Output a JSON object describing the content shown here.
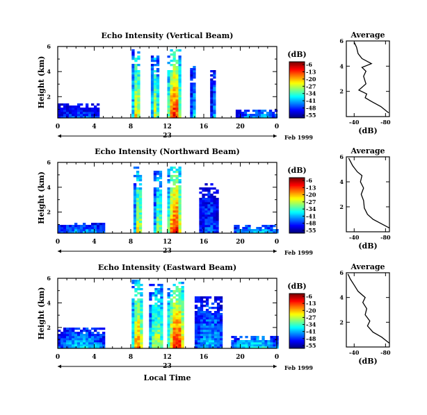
{
  "figure": {
    "date_label": "Feb 1999",
    "day_label": "23",
    "xlabel_bottom": "Local Time"
  },
  "chart_data": [
    {
      "type": "heatmap",
      "title": "Echo Intensity (Vertical Beam)",
      "xlabel": "",
      "ylabel": "Height (km)",
      "x_ticks": [
        "0",
        "4",
        "8",
        "12",
        "16",
        "20",
        "0"
      ],
      "y_ticks": [
        "2",
        "4",
        "6"
      ],
      "xlim": [
        0,
        24
      ],
      "ylim": [
        0.3,
        6
      ],
      "colorbar": {
        "label": "(dB)",
        "ticks": [
          "-6",
          "-13",
          "-20",
          "-27",
          "-34",
          "-41",
          "-48",
          "-55"
        ],
        "range": [
          -55,
          -6
        ]
      },
      "echo_columns": [
        {
          "start_hour": 0.0,
          "end_hour": 4.5,
          "top_km": 1.5,
          "intensity_db": -45
        },
        {
          "start_hour": 8.1,
          "end_hour": 8.9,
          "top_km": 5.9,
          "intensity_db": -22
        },
        {
          "start_hour": 10.2,
          "end_hour": 10.9,
          "top_km": 5.3,
          "intensity_db": -25
        },
        {
          "start_hour": 12.0,
          "end_hour": 13.3,
          "top_km": 5.8,
          "intensity_db": -12
        },
        {
          "start_hour": 14.5,
          "end_hour": 15.0,
          "top_km": 4.5,
          "intensity_db": -38
        },
        {
          "start_hour": 16.7,
          "end_hour": 17.2,
          "top_km": 4.2,
          "intensity_db": -40
        },
        {
          "start_hour": 19.5,
          "end_hour": 24.0,
          "top_km": 1.0,
          "intensity_db": -38
        }
      ],
      "profile": {
        "title": "Average",
        "xlabel": "(dB)",
        "x_ticks": [
          "-40",
          "-80"
        ],
        "y_ticks": [
          "2",
          "4",
          "6"
        ],
        "xlim": [
          -30,
          -85
        ],
        "ylim": [
          0,
          6
        ],
        "points": [
          [
            -84,
            0.3
          ],
          [
            -74,
            0.8
          ],
          [
            -62,
            1.2
          ],
          [
            -54,
            1.5
          ],
          [
            -56,
            1.8
          ],
          [
            -46,
            2.1
          ],
          [
            -55,
            2.6
          ],
          [
            -52,
            3.2
          ],
          [
            -55,
            3.6
          ],
          [
            -50,
            3.9
          ],
          [
            -62,
            4.2
          ],
          [
            -50,
            4.6
          ],
          [
            -45,
            5.0
          ],
          [
            -43,
            5.5
          ],
          [
            -40,
            5.9
          ]
        ]
      }
    },
    {
      "type": "heatmap",
      "title": "Echo Intensity (Northward Beam)",
      "xlabel": "",
      "ylabel": "Height (km)",
      "x_ticks": [
        "0",
        "4",
        "8",
        "12",
        "16",
        "20",
        "0"
      ],
      "y_ticks": [
        "2",
        "4",
        "6"
      ],
      "xlim": [
        0,
        24
      ],
      "ylim": [
        0.3,
        6
      ],
      "colorbar": {
        "label": "(dB)",
        "ticks": [
          "-6",
          "-13",
          "-20",
          "-27",
          "-34",
          "-41",
          "-48",
          "-55"
        ],
        "range": [
          -55,
          -6
        ]
      },
      "echo_columns": [
        {
          "start_hour": 0.0,
          "end_hour": 5.0,
          "top_km": 1.3,
          "intensity_db": -40
        },
        {
          "start_hour": 8.3,
          "end_hour": 9.1,
          "top_km": 5.8,
          "intensity_db": -24
        },
        {
          "start_hour": 10.5,
          "end_hour": 11.3,
          "top_km": 5.4,
          "intensity_db": -28
        },
        {
          "start_hour": 12.0,
          "end_hour": 13.4,
          "top_km": 5.8,
          "intensity_db": -12
        },
        {
          "start_hour": 15.5,
          "end_hour": 17.5,
          "top_km": 4.4,
          "intensity_db": -45
        },
        {
          "start_hour": 19.3,
          "end_hour": 24.0,
          "top_km": 1.0,
          "intensity_db": -36
        }
      ],
      "profile": {
        "title": "Average",
        "xlabel": "(dB)",
        "x_ticks": [
          "-40",
          "-80"
        ],
        "y_ticks": [
          "2",
          "4",
          "6"
        ],
        "xlim": [
          -30,
          -85
        ],
        "ylim": [
          0,
          6
        ],
        "points": [
          [
            -85,
            0.3
          ],
          [
            -76,
            0.6
          ],
          [
            -64,
            1.0
          ],
          [
            -57,
            1.4
          ],
          [
            -53,
            1.9
          ],
          [
            -52,
            2.5
          ],
          [
            -49,
            3.0
          ],
          [
            -52,
            3.5
          ],
          [
            -48,
            4.0
          ],
          [
            -50,
            4.5
          ],
          [
            -44,
            4.8
          ],
          [
            -38,
            5.3
          ],
          [
            -33,
            5.9
          ]
        ]
      }
    },
    {
      "type": "heatmap",
      "title": "Echo Intensity (Eastward Beam)",
      "xlabel": "Local Time",
      "ylabel": "Height (km)",
      "x_ticks": [
        "0",
        "4",
        "8",
        "12",
        "16",
        "20",
        "0"
      ],
      "y_ticks": [
        "2",
        "4",
        "6"
      ],
      "xlim": [
        0,
        24
      ],
      "ylim": [
        0.3,
        6
      ],
      "colorbar": {
        "label": "(dB)",
        "ticks": [
          "-6",
          "-13",
          "-20",
          "-27",
          "-34",
          "-41",
          "-48",
          "-55"
        ],
        "range": [
          -55,
          -6
        ]
      },
      "echo_columns": [
        {
          "start_hour": 0.0,
          "end_hour": 5.0,
          "top_km": 2.0,
          "intensity_db": -38
        },
        {
          "start_hour": 8.1,
          "end_hour": 9.2,
          "top_km": 5.9,
          "intensity_db": -18
        },
        {
          "start_hour": 10.0,
          "end_hour": 11.5,
          "top_km": 5.6,
          "intensity_db": -26
        },
        {
          "start_hour": 12.0,
          "end_hour": 13.8,
          "top_km": 5.8,
          "intensity_db": -12
        },
        {
          "start_hour": 15.0,
          "end_hour": 18.0,
          "top_km": 4.6,
          "intensity_db": -40
        },
        {
          "start_hour": 19.0,
          "end_hour": 24.0,
          "top_km": 1.4,
          "intensity_db": -34
        }
      ],
      "profile": {
        "title": "Average",
        "xlabel": "(dB)",
        "x_ticks": [
          "-40",
          "-80"
        ],
        "y_ticks": [
          "2",
          "4",
          "6"
        ],
        "xlim": [
          -30,
          -85
        ],
        "ylim": [
          0,
          6
        ],
        "points": [
          [
            -85,
            0.3
          ],
          [
            -75,
            0.8
          ],
          [
            -64,
            1.2
          ],
          [
            -57,
            1.7
          ],
          [
            -60,
            2.1
          ],
          [
            -54,
            2.6
          ],
          [
            -56,
            3.1
          ],
          [
            -51,
            3.6
          ],
          [
            -54,
            4.0
          ],
          [
            -45,
            4.5
          ],
          [
            -40,
            5.0
          ],
          [
            -35,
            5.5
          ],
          [
            -32,
            5.9
          ]
        ]
      }
    }
  ]
}
